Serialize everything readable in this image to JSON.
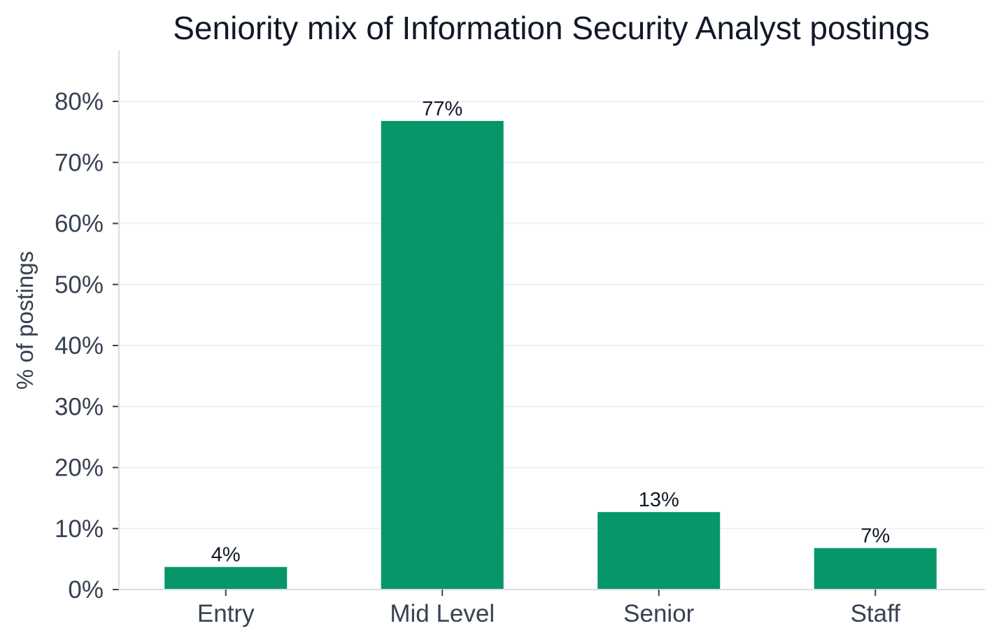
{
  "chart_data": {
    "type": "bar",
    "title": "Seniority mix of Information Security Analyst postings",
    "xlabel": "",
    "ylabel": "% of postings",
    "categories": [
      "Entry",
      "Mid Level",
      "Senior",
      "Staff"
    ],
    "values": [
      3.7,
      76.8,
      12.7,
      6.8
    ],
    "value_labels": [
      "4%",
      "77%",
      "13%",
      "7%"
    ],
    "ylim": [
      0,
      80
    ],
    "yticks": [
      0,
      10,
      20,
      30,
      40,
      50,
      60,
      70,
      80
    ],
    "ytick_labels": [
      "0%",
      "10%",
      "20%",
      "30%",
      "40%",
      "50%",
      "60%",
      "70%",
      "80%"
    ],
    "grid": true,
    "bar_color": "#069669",
    "grid_color": "#eef0f2",
    "axis_color": "#d9dde2"
  }
}
